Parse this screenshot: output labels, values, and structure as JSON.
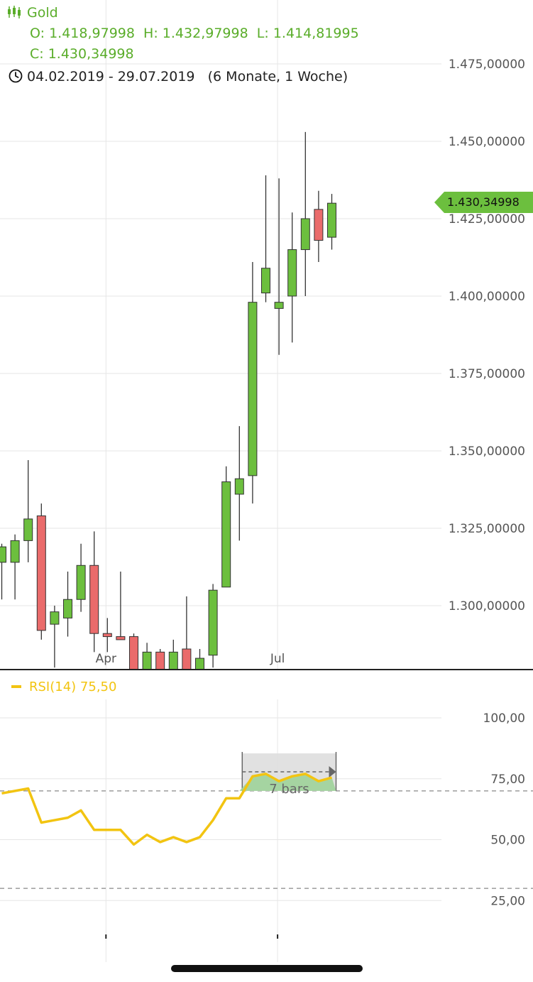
{
  "header": {
    "instrument": "Gold",
    "open_label": "O:",
    "open": "1.418,97998",
    "high_label": "H:",
    "high": "1.432,97998",
    "low_label": "L:",
    "low": "1.414,81995",
    "close_label": "C:",
    "close": "1.430,34998",
    "date_range": "04.02.2019 - 29.07.2019",
    "period": "(6 Monate, 1 Woche)",
    "instrument_icon": "candlestick-icon",
    "clock_icon": "clock-icon"
  },
  "price_tag": "1.430,34998",
  "colors": {
    "up": "#6cbf3e",
    "down": "#ea6b6b",
    "brand": "#5aad2a",
    "rsi": "#f2c411",
    "grid": "#e6e6e6",
    "axis": "#222222",
    "tag": "#6cbf3e"
  },
  "chart_data": [
    {
      "type": "candlestick",
      "title": "Gold",
      "y_ticks": [
        "1.475,00000",
        "1.450,00000",
        "1.425,00000",
        "1.400,00000",
        "1.375,00000",
        "1.350,00000",
        "1.325,00000",
        "1.300,00000"
      ],
      "y_tick_values": [
        1475,
        1450,
        1425,
        1400,
        1375,
        1350,
        1325,
        1300
      ],
      "x_labels": [
        "Apr",
        "Jul"
      ],
      "x_label_week_index": [
        8,
        21
      ],
      "ylim": [
        1278,
        1487
      ],
      "grid": true,
      "last_price": 1430.34998,
      "candles": [
        {
          "o": 1314,
          "h": 1320,
          "l": 1302,
          "c": 1319
        },
        {
          "o": 1314,
          "h": 1323,
          "l": 1302,
          "c": 1321
        },
        {
          "o": 1321,
          "h": 1347,
          "l": 1314,
          "c": 1328
        },
        {
          "o": 1329,
          "h": 1333,
          "l": 1289,
          "c": 1292
        },
        {
          "o": 1294,
          "h": 1300,
          "l": 1280,
          "c": 1298
        },
        {
          "o": 1296,
          "h": 1311,
          "l": 1290,
          "c": 1302
        },
        {
          "o": 1302,
          "h": 1320,
          "l": 1298,
          "c": 1313
        },
        {
          "o": 1313,
          "h": 1324,
          "l": 1285,
          "c": 1291
        },
        {
          "o": 1291,
          "h": 1296,
          "l": 1285,
          "c": 1290
        },
        {
          "o": 1290,
          "h": 1311,
          "l": 1289,
          "c": 1289
        },
        {
          "o": 1290,
          "h": 1291,
          "l": 1270,
          "c": 1277
        },
        {
          "o": 1277,
          "h": 1288,
          "l": 1269,
          "c": 1285
        },
        {
          "o": 1285,
          "h": 1286,
          "l": 1269,
          "c": 1277
        },
        {
          "o": 1279,
          "h": 1289,
          "l": 1269,
          "c": 1285
        },
        {
          "o": 1286,
          "h": 1303,
          "l": 1271,
          "c": 1274
        },
        {
          "o": 1277,
          "h": 1286,
          "l": 1268,
          "c": 1283
        },
        {
          "o": 1284,
          "h": 1307,
          "l": 1280,
          "c": 1305
        },
        {
          "o": 1306,
          "h": 1345,
          "l": 1306,
          "c": 1340
        },
        {
          "o": 1336,
          "h": 1358,
          "l": 1321,
          "c": 1341
        },
        {
          "o": 1342,
          "h": 1411,
          "l": 1333,
          "c": 1398
        },
        {
          "o": 1401,
          "h": 1439,
          "l": 1398,
          "c": 1409
        },
        {
          "o": 1396,
          "h": 1438,
          "l": 1381,
          "c": 1398
        },
        {
          "o": 1400,
          "h": 1427,
          "l": 1385,
          "c": 1415
        },
        {
          "o": 1415,
          "h": 1453,
          "l": 1400,
          "c": 1425
        },
        {
          "o": 1428,
          "h": 1434,
          "l": 1411,
          "c": 1418
        },
        {
          "o": 1419,
          "h": 1433,
          "l": 1415,
          "c": 1430
        }
      ]
    },
    {
      "type": "line",
      "legend": "RSI(14)",
      "legend_value": "75,50",
      "y_ticks": [
        "100,00",
        "75,00",
        "50,00",
        "25,00"
      ],
      "y_tick_values": [
        100,
        75,
        50,
        25
      ],
      "ylim": [
        3,
        111
      ],
      "reference_lines": [
        70,
        30
      ],
      "annotation": "7 bars",
      "annotation_weeks": [
        18,
        25
      ],
      "values": [
        69,
        70,
        71,
        57,
        58,
        59,
        62,
        54,
        54,
        54,
        48,
        52,
        49,
        51,
        49,
        51,
        58,
        67,
        67,
        76,
        77,
        74,
        76,
        77,
        74,
        75.5
      ]
    }
  ]
}
